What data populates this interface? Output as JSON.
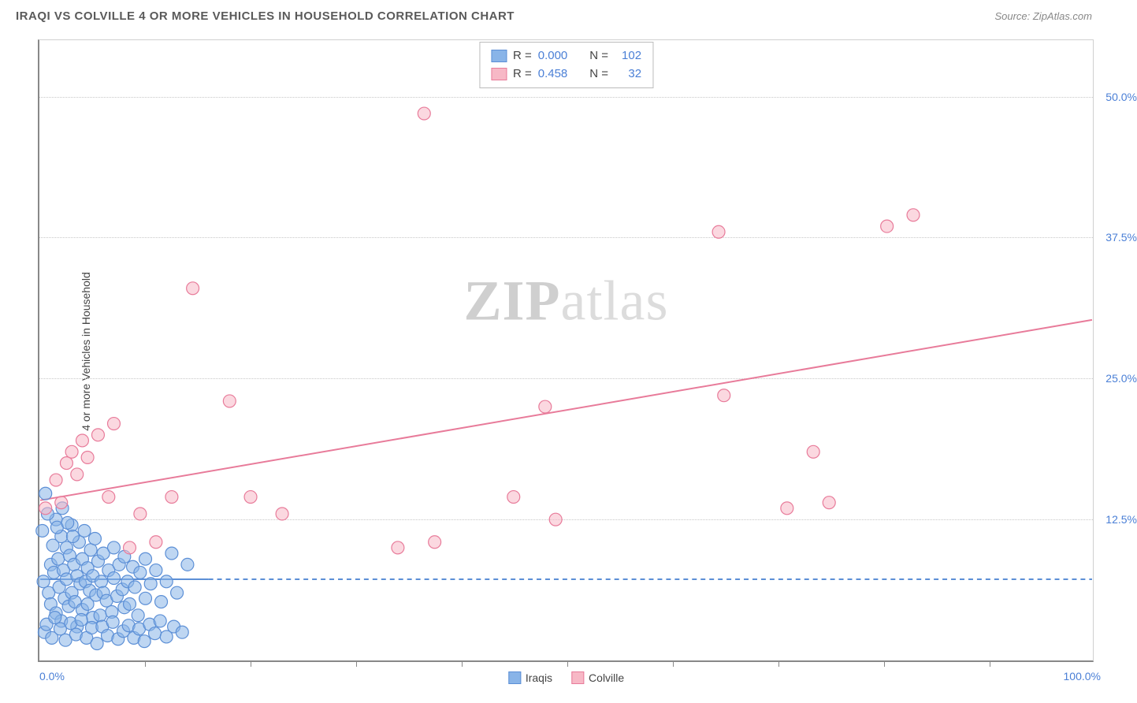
{
  "header": {
    "title": "IRAQI VS COLVILLE 4 OR MORE VEHICLES IN HOUSEHOLD CORRELATION CHART",
    "source_prefix": "Source: ",
    "source": "ZipAtlas.com"
  },
  "watermark": {
    "part1": "ZIP",
    "part2": "atlas"
  },
  "chart": {
    "type": "scatter",
    "ylabel": "4 or more Vehicles in Household",
    "xlim": [
      0,
      100
    ],
    "ylim": [
      0,
      55
    ],
    "x_axis_label_left": "0.0%",
    "x_axis_label_right": "100.0%",
    "y_ticks": [
      {
        "value": 12.5,
        "label": "12.5%"
      },
      {
        "value": 25.0,
        "label": "25.0%"
      },
      {
        "value": 37.5,
        "label": "37.5%"
      },
      {
        "value": 50.0,
        "label": "50.0%"
      }
    ],
    "x_minor_ticks": [
      10,
      20,
      30,
      40,
      50,
      60,
      70,
      80,
      90
    ],
    "grid_color": "#c8c8c8",
    "background_color": "#ffffff",
    "marker_radius": 8,
    "marker_opacity": 0.55,
    "line_width": 2,
    "series": [
      {
        "name": "Iraqis",
        "fill_color": "#89b4e8",
        "stroke_color": "#5c8fd6",
        "trend": {
          "y_at_x0": 7.2,
          "y_at_x100": 7.2,
          "solid_until_x": 16,
          "dashed": true
        },
        "points": [
          [
            0.3,
            7.0
          ],
          [
            0.5,
            14.8
          ],
          [
            0.8,
            6.0
          ],
          [
            1.0,
            8.5
          ],
          [
            1.0,
            5.0
          ],
          [
            1.2,
            10.2
          ],
          [
            1.3,
            7.8
          ],
          [
            1.5,
            12.5
          ],
          [
            1.5,
            4.2
          ],
          [
            1.7,
            9.0
          ],
          [
            1.8,
            6.5
          ],
          [
            2.0,
            11.0
          ],
          [
            2.0,
            3.5
          ],
          [
            2.2,
            8.0
          ],
          [
            2.3,
            5.5
          ],
          [
            2.5,
            10.0
          ],
          [
            2.5,
            7.2
          ],
          [
            2.7,
            4.8
          ],
          [
            2.8,
            9.3
          ],
          [
            3.0,
            6.0
          ],
          [
            3.0,
            12.0
          ],
          [
            3.2,
            8.5
          ],
          [
            3.3,
            5.2
          ],
          [
            3.5,
            7.5
          ],
          [
            3.5,
            3.0
          ],
          [
            3.7,
            10.5
          ],
          [
            3.8,
            6.8
          ],
          [
            4.0,
            9.0
          ],
          [
            4.0,
            4.5
          ],
          [
            4.2,
            11.5
          ],
          [
            4.3,
            7.0
          ],
          [
            4.5,
            8.2
          ],
          [
            4.5,
            5.0
          ],
          [
            4.7,
            6.2
          ],
          [
            4.8,
            9.8
          ],
          [
            5.0,
            3.8
          ],
          [
            5.0,
            7.5
          ],
          [
            5.2,
            10.8
          ],
          [
            5.3,
            5.8
          ],
          [
            5.5,
            8.8
          ],
          [
            5.7,
            4.0
          ],
          [
            5.8,
            7.0
          ],
          [
            6.0,
            6.0
          ],
          [
            6.0,
            9.5
          ],
          [
            6.3,
            5.3
          ],
          [
            6.5,
            8.0
          ],
          [
            6.8,
            4.3
          ],
          [
            7.0,
            7.3
          ],
          [
            7.0,
            10.0
          ],
          [
            7.3,
            5.7
          ],
          [
            7.5,
            8.5
          ],
          [
            7.8,
            6.3
          ],
          [
            8.0,
            4.7
          ],
          [
            8.0,
            9.2
          ],
          [
            8.3,
            7.0
          ],
          [
            8.5,
            5.0
          ],
          [
            8.8,
            8.3
          ],
          [
            9.0,
            6.5
          ],
          [
            9.3,
            4.0
          ],
          [
            9.5,
            7.8
          ],
          [
            10.0,
            5.5
          ],
          [
            10.0,
            9.0
          ],
          [
            10.5,
            6.8
          ],
          [
            11.0,
            8.0
          ],
          [
            11.5,
            5.2
          ],
          [
            12.0,
            7.0
          ],
          [
            12.5,
            9.5
          ],
          [
            13.0,
            6.0
          ],
          [
            14.0,
            8.5
          ],
          [
            0.4,
            2.5
          ],
          [
            0.6,
            3.2
          ],
          [
            1.1,
            2.0
          ],
          [
            1.4,
            3.8
          ],
          [
            1.9,
            2.8
          ],
          [
            2.4,
            1.8
          ],
          [
            2.9,
            3.3
          ],
          [
            3.4,
            2.3
          ],
          [
            3.9,
            3.6
          ],
          [
            4.4,
            2.0
          ],
          [
            4.9,
            2.9
          ],
          [
            5.4,
            1.5
          ],
          [
            5.9,
            3.0
          ],
          [
            6.4,
            2.2
          ],
          [
            6.9,
            3.4
          ],
          [
            7.4,
            1.9
          ],
          [
            7.9,
            2.6
          ],
          [
            8.4,
            3.1
          ],
          [
            8.9,
            2.0
          ],
          [
            9.4,
            2.8
          ],
          [
            9.9,
            1.7
          ],
          [
            10.4,
            3.2
          ],
          [
            10.9,
            2.4
          ],
          [
            11.4,
            3.5
          ],
          [
            12.0,
            2.1
          ],
          [
            12.7,
            3.0
          ],
          [
            13.5,
            2.5
          ],
          [
            0.2,
            11.5
          ],
          [
            0.7,
            13.0
          ],
          [
            1.6,
            11.8
          ],
          [
            2.1,
            13.5
          ],
          [
            2.6,
            12.2
          ],
          [
            3.1,
            11.0
          ]
        ]
      },
      {
        "name": "Colville",
        "fill_color": "#f7b8c6",
        "stroke_color": "#e87b9a",
        "trend": {
          "y_at_x0": 14.2,
          "y_at_x100": 30.2,
          "solid_until_x": 100,
          "dashed": false
        },
        "points": [
          [
            0.5,
            13.5
          ],
          [
            1.5,
            16.0
          ],
          [
            2.0,
            14.0
          ],
          [
            2.5,
            17.5
          ],
          [
            3.0,
            18.5
          ],
          [
            3.5,
            16.5
          ],
          [
            4.0,
            19.5
          ],
          [
            4.5,
            18.0
          ],
          [
            5.5,
            20.0
          ],
          [
            6.5,
            14.5
          ],
          [
            7.0,
            21.0
          ],
          [
            8.5,
            10.0
          ],
          [
            9.5,
            13.0
          ],
          [
            11.0,
            10.5
          ],
          [
            12.5,
            14.5
          ],
          [
            14.5,
            33.0
          ],
          [
            18.0,
            23.0
          ],
          [
            20.0,
            14.5
          ],
          [
            23.0,
            13.0
          ],
          [
            34.0,
            10.0
          ],
          [
            37.5,
            10.5
          ],
          [
            36.5,
            48.5
          ],
          [
            45.0,
            14.5
          ],
          [
            48.0,
            22.5
          ],
          [
            49.0,
            12.5
          ],
          [
            64.5,
            38.0
          ],
          [
            65.0,
            23.5
          ],
          [
            71.0,
            13.5
          ],
          [
            73.5,
            18.5
          ],
          [
            75.0,
            14.0
          ],
          [
            80.5,
            38.5
          ],
          [
            83.0,
            39.5
          ]
        ]
      }
    ],
    "stats_box": {
      "rows": [
        {
          "swatch_series": 0,
          "r_label": "R =",
          "r_value": "0.000",
          "n_label": "N =",
          "n_value": "102"
        },
        {
          "swatch_series": 1,
          "r_label": "R =",
          "r_value": "0.458",
          "n_label": "N =",
          "n_value": "32"
        }
      ]
    },
    "bottom_legend": [
      {
        "series": 0,
        "label": "Iraqis"
      },
      {
        "series": 1,
        "label": "Colville"
      }
    ]
  }
}
